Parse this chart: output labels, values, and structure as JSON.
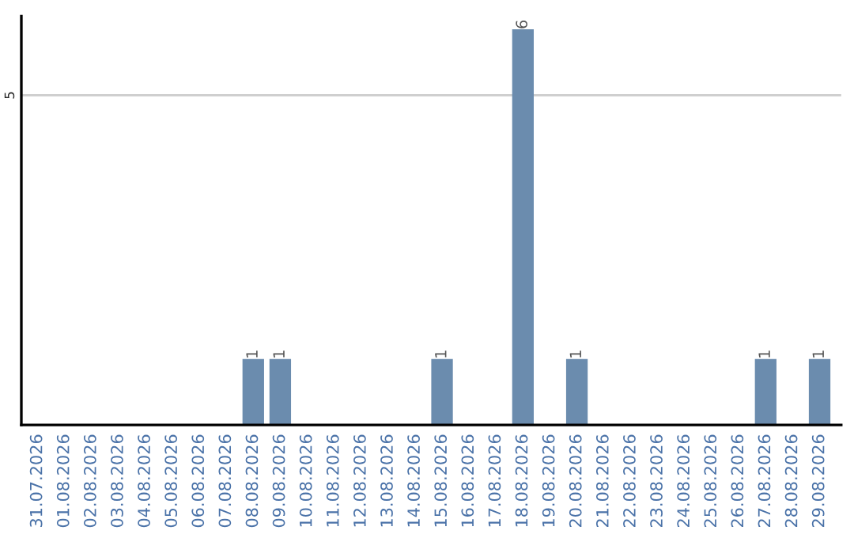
{
  "chart_data": {
    "type": "bar",
    "categories": [
      "31.07.2026",
      "01.08.2026",
      "02.08.2026",
      "03.08.2026",
      "04.08.2026",
      "05.08.2026",
      "06.08.2026",
      "07.08.2026",
      "08.08.2026",
      "09.08.2026",
      "10.08.2026",
      "11.08.2026",
      "12.08.2026",
      "13.08.2026",
      "14.08.2026",
      "15.08.2026",
      "16.08.2026",
      "17.08.2026",
      "18.08.2026",
      "19.08.2026",
      "20.08.2026",
      "21.08.2026",
      "22.08.2026",
      "23.08.2026",
      "24.08.2026",
      "25.08.2026",
      "26.08.2026",
      "27.08.2026",
      "28.08.2026",
      "29.08.2026"
    ],
    "values": [
      0,
      0,
      0,
      0,
      0,
      0,
      0,
      0,
      1,
      1,
      0,
      0,
      0,
      0,
      0,
      1,
      0,
      0,
      6,
      0,
      1,
      0,
      0,
      0,
      0,
      0,
      0,
      1,
      0,
      1
    ],
    "value_labels": [
      null,
      null,
      null,
      null,
      null,
      null,
      null,
      null,
      "1",
      "1",
      null,
      null,
      null,
      null,
      null,
      "1",
      null,
      null,
      "6",
      null,
      "1",
      null,
      null,
      null,
      null,
      null,
      null,
      "1",
      null,
      "1"
    ],
    "color": "#6b8cae",
    "ylim": [
      0,
      6.2
    ],
    "yticks": [
      5
    ],
    "grid": "y"
  }
}
